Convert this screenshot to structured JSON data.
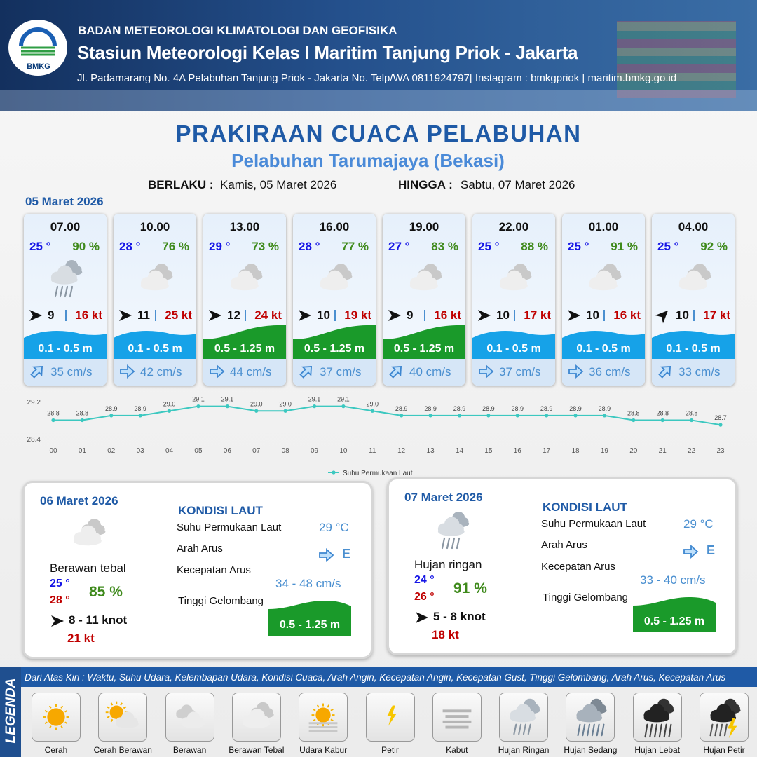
{
  "header": {
    "logo": "BMKG",
    "agency": "BADAN METEOROLOGI KLIMATOLOGI DAN GEOFISIKA",
    "station": "Stasiun Meteorologi Kelas I Maritim Tanjung Priok - Jakarta",
    "address": "Jl. Padamarang No. 4A Pelabuhan Tanjung Priok - Jakarta No. Telp/WA 0811924797| Instagram : bmkgpriok | maritim.bmkg.go.id"
  },
  "title": "PRAKIRAAN CUACA PELABUHAN",
  "subtitle": "Pelabuhan Tarumajaya (Bekasi)",
  "validity": {
    "from_label": "BERLAKU :",
    "from": "Kamis, 05 Maret 2026",
    "to_label": "HINGGA :",
    "to": "Sabtu, 07 Maret 2026"
  },
  "day1": {
    "date": "05 Maret 2026",
    "slots": [
      {
        "time": "07.00",
        "temp": "25 °",
        "rh": "90 %",
        "wind": "9",
        "gust": "16 kt",
        "wave": "0.1 - 0.5 m",
        "current": "35 cm/s",
        "icon": "rain-light",
        "wind_rotate": 0,
        "wave_color": "blue",
        "current_rotate": -45
      },
      {
        "time": "10.00",
        "temp": "28 °",
        "rh": "76 %",
        "wind": "11",
        "gust": "25 kt",
        "wave": "0.1 - 0.5 m",
        "current": "42 cm/s",
        "icon": "cloud-thick",
        "wind_rotate": 0,
        "wave_color": "blue",
        "current_rotate": 0
      },
      {
        "time": "13.00",
        "temp": "29 °",
        "rh": "73 %",
        "wind": "12",
        "gust": "24 kt",
        "wave": "0.5 - 1.25 m",
        "current": "44 cm/s",
        "icon": "cloud-thick",
        "wind_rotate": 0,
        "wave_color": "green",
        "current_rotate": 0
      },
      {
        "time": "16.00",
        "temp": "28 °",
        "rh": "77 %",
        "wind": "10",
        "gust": "19 kt",
        "wave": "0.5 - 1.25 m",
        "current": "37 cm/s",
        "icon": "cloud-thick",
        "wind_rotate": 0,
        "wave_color": "green",
        "current_rotate": -45
      },
      {
        "time": "19.00",
        "temp": "27 °",
        "rh": "83 %",
        "wind": "9",
        "gust": "16 kt",
        "wave": "0.5 - 1.25 m",
        "current": "40 cm/s",
        "icon": "cloud-thick",
        "wind_rotate": 0,
        "wave_color": "green",
        "current_rotate": -45
      },
      {
        "time": "22.00",
        "temp": "25 °",
        "rh": "88 %",
        "wind": "10",
        "gust": "17 kt",
        "wave": "0.1 - 0.5 m",
        "current": "37 cm/s",
        "icon": "cloud-thick",
        "wind_rotate": 0,
        "wave_color": "blue",
        "current_rotate": 0
      },
      {
        "time": "01.00",
        "temp": "25 °",
        "rh": "91 %",
        "wind": "10",
        "gust": "16 kt",
        "wave": "0.1 - 0.5 m",
        "current": "36 cm/s",
        "icon": "cloud-thick",
        "wind_rotate": 0,
        "wave_color": "blue",
        "current_rotate": 0
      },
      {
        "time": "04.00",
        "temp": "25 °",
        "rh": "92 %",
        "wind": "10",
        "gust": "17 kt",
        "wave": "0.1 - 0.5 m",
        "current": "33 cm/s",
        "icon": "cloud-thick",
        "wind_rotate": -45,
        "wave_color": "blue",
        "current_rotate": -45
      }
    ]
  },
  "chart_data": {
    "type": "line",
    "categories": [
      "00",
      "01",
      "02",
      "03",
      "04",
      "05",
      "06",
      "07",
      "08",
      "09",
      "10",
      "11",
      "12",
      "13",
      "14",
      "15",
      "16",
      "17",
      "18",
      "19",
      "20",
      "21",
      "22",
      "23"
    ],
    "series": [
      {
        "name": "Suhu Permukaan Laut",
        "color": "#3cc8c0",
        "values": [
          28.8,
          28.8,
          28.9,
          28.9,
          29.0,
          29.1,
          29.1,
          29.0,
          29.0,
          29.1,
          29.1,
          29.0,
          28.9,
          28.9,
          28.9,
          28.9,
          28.9,
          28.9,
          28.9,
          28.9,
          28.8,
          28.8,
          28.8,
          28.7
        ],
        "value_labels": [
          "28.8",
          "28.8",
          "28.9",
          "28.9",
          "29.0",
          "29.1",
          "29.1",
          "29.0",
          "29.0",
          "29.1",
          "29.1",
          "29.0",
          "28.9",
          "28.9",
          "28.9",
          "28.9",
          "28.9",
          "28.9",
          "28.9",
          "28.9",
          "28.8",
          "28.8",
          "28.8",
          "28.7"
        ]
      }
    ],
    "ylim": [
      28.4,
      29.2
    ],
    "yticks": [
      28.4,
      29.2
    ],
    "grid": false
  },
  "days": [
    {
      "date": "06 Maret 2026",
      "icon": "cloud-thick",
      "condition": "Berawan tebal",
      "temp_min": "25 °",
      "temp_max": "28 °",
      "rh": "85 %",
      "wind": "8  - 11 knot",
      "gust": "21 kt",
      "sea_title": "KONDISI LAUT",
      "sst_label": "Suhu Permukaan Laut",
      "sst": "29 °C",
      "dir_label": "Arah Arus",
      "dir": "E",
      "speed_label": "Kecepatan Arus",
      "speed": "34  - 48 cm/s",
      "wave_label": "Tinggi Gelombang",
      "wave": "0.5 - 1.25 m"
    },
    {
      "date": "07 Maret 2026",
      "icon": "rain-light",
      "condition": "Hujan ringan",
      "temp_min": "24 °",
      "temp_max": "26 °",
      "rh": "91 %",
      "wind": "5  - 8 knot",
      "gust": "18 kt",
      "sea_title": "KONDISI LAUT",
      "sst_label": "Suhu Permukaan Laut",
      "sst": "29 °C",
      "dir_label": "Arah Arus",
      "dir": "E",
      "speed_label": "Kecepatan Arus",
      "speed": "33  - 40 cm/s",
      "wave_label": "Tinggi Gelombang",
      "wave": "0.5 - 1.25 m"
    }
  ],
  "legend": {
    "title": "LEGENDA",
    "description": "Dari Atas Kiri : Waktu, Suhu Udara, Kelembapan Udara, Kondisi Cuaca, Arah Angin, Kecepatan Angin, Kecepatan Gust, Tinggi Gelombang, Arah Arus, Kecepatan Arus",
    "items": [
      {
        "label": "Cerah",
        "icon": "sun"
      },
      {
        "label": "Cerah Berawan",
        "icon": "sun-cloud"
      },
      {
        "label": "Berawan",
        "icon": "cloud"
      },
      {
        "label": "Berawan Tebal",
        "icon": "cloud-thick"
      },
      {
        "label": "Udara Kabur",
        "icon": "haze"
      },
      {
        "label": "Petir",
        "icon": "lightning"
      },
      {
        "label": "Kabut",
        "icon": "fog"
      },
      {
        "label": "Hujan Ringan",
        "icon": "rain-light"
      },
      {
        "label": "Hujan Sedang",
        "icon": "rain-mod"
      },
      {
        "label": "Hujan Lebat",
        "icon": "rain-heavy"
      },
      {
        "label": "Hujan Petir",
        "icon": "thunder"
      }
    ]
  }
}
